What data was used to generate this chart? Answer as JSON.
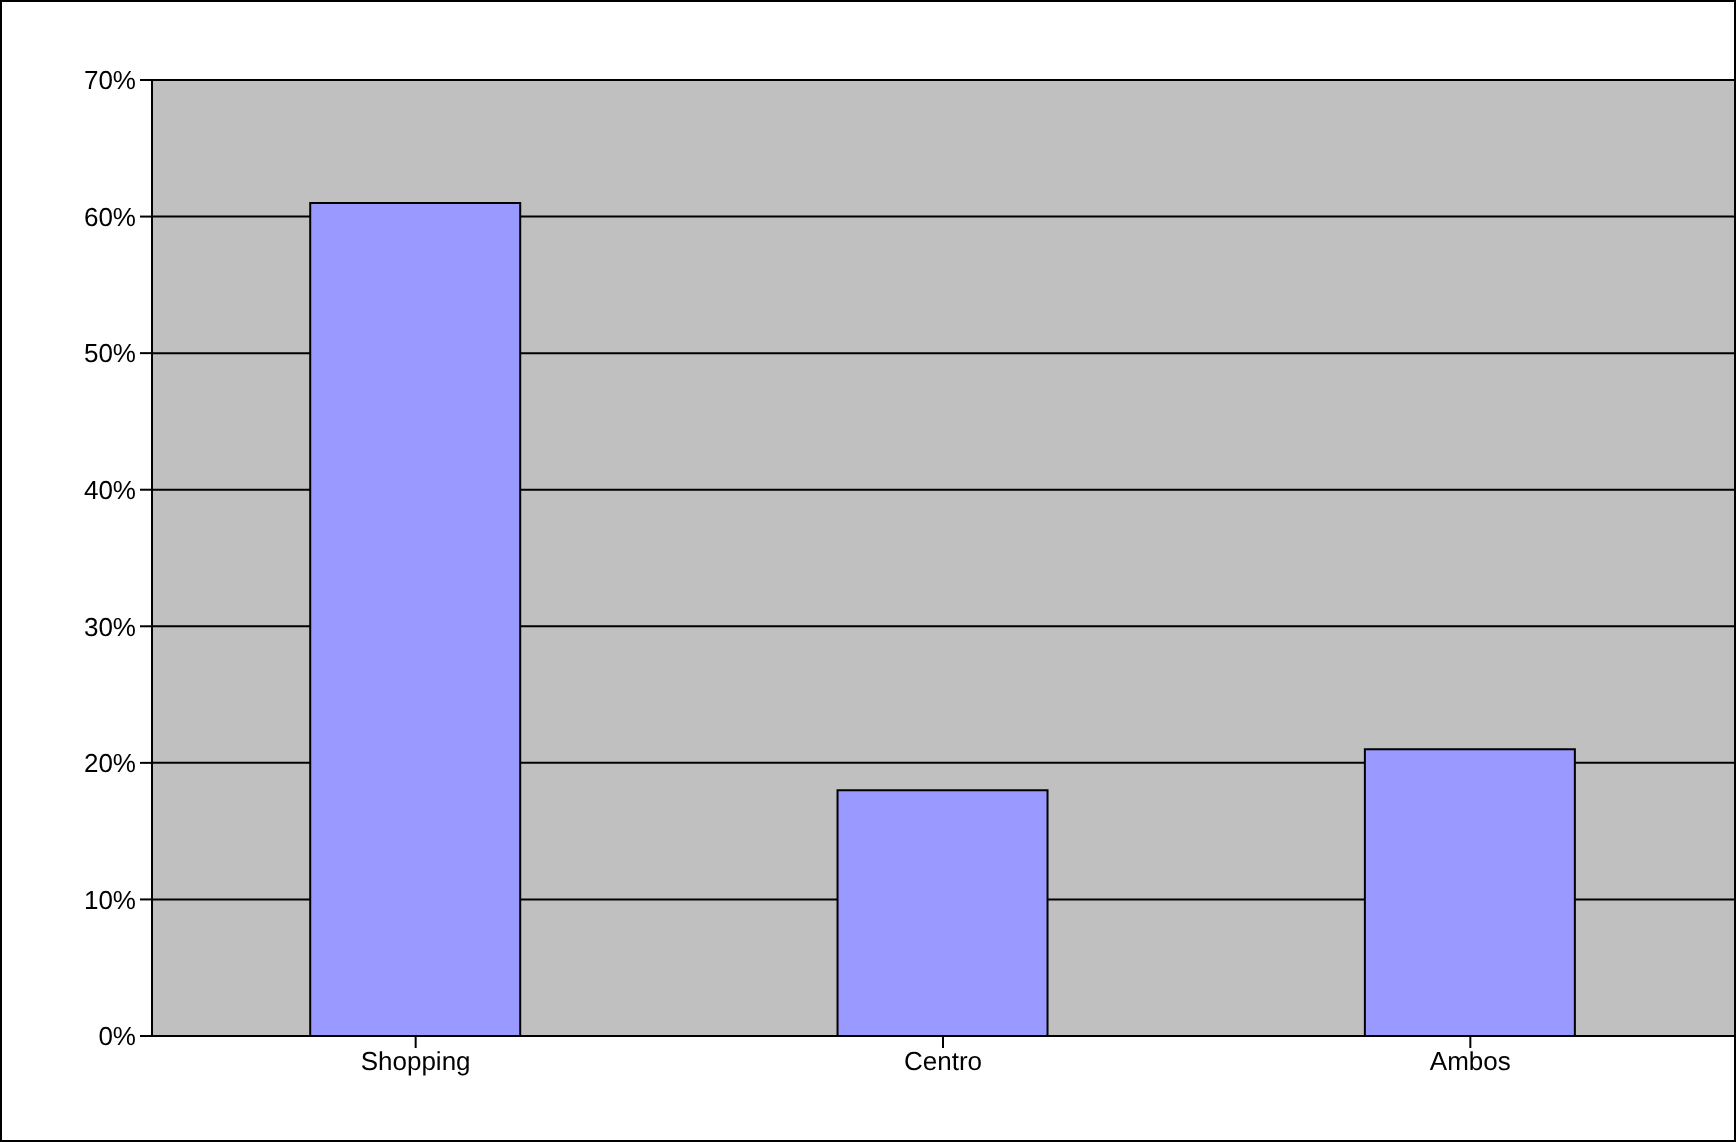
{
  "chart_data": {
    "type": "bar",
    "categories": [
      "Shopping",
      "Centro",
      "Ambos"
    ],
    "values": [
      61,
      18,
      21
    ],
    "color": "#9999ff",
    "ylim": [
      0,
      70
    ],
    "yticks": [
      {
        "value": 0,
        "label": "0%"
      },
      {
        "value": 10,
        "label": "10%"
      },
      {
        "value": 20,
        "label": "20%"
      },
      {
        "value": 30,
        "label": "30%"
      },
      {
        "value": 40,
        "label": "40%"
      },
      {
        "value": 50,
        "label": "50%"
      },
      {
        "value": 60,
        "label": "60%"
      },
      {
        "value": 70,
        "label": "70%"
      }
    ],
    "grid": "y",
    "legend": false
  }
}
